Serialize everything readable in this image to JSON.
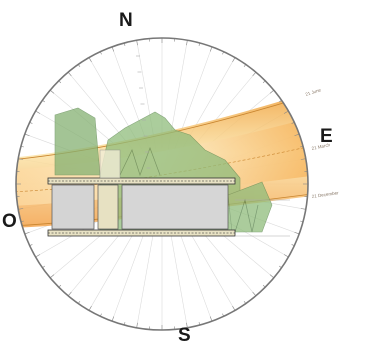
{
  "diagram": {
    "cardinals": {
      "north": "N",
      "east": "E",
      "south": "S",
      "west": "O"
    },
    "sun_path_labels": [
      "21 June",
      "21 March",
      "21 December"
    ]
  },
  "colors": {
    "ring": "#777777",
    "ray": "#d9d9d9",
    "sun_band_outer": "#f2a33c",
    "sun_band_inner": "#fbe7b4",
    "obstruction_green": "#7fae6c",
    "building_grey": "#d6d6d6",
    "building_outline": "#333333"
  }
}
